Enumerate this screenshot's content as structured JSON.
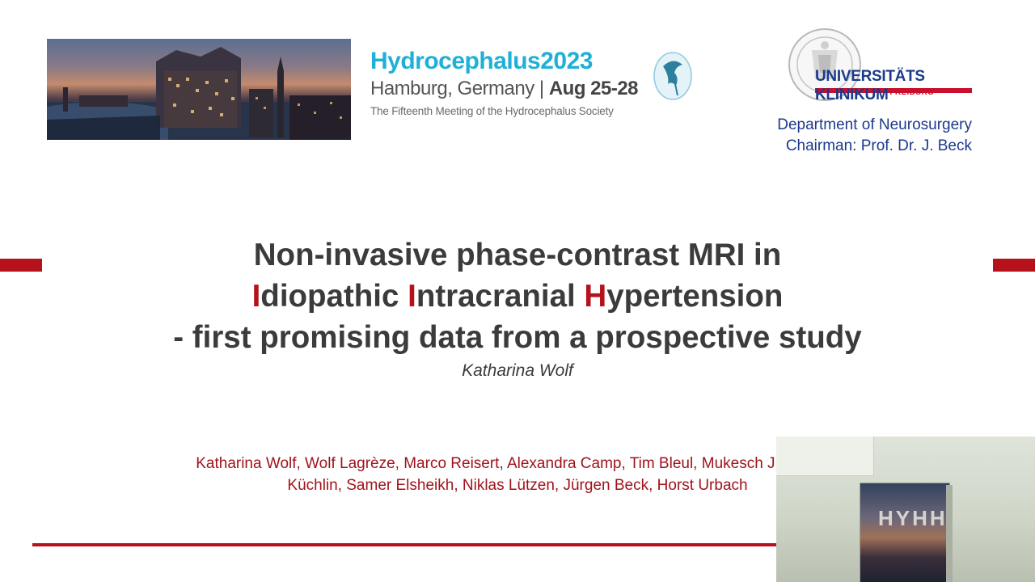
{
  "conference": {
    "name": "Hydrocephalus2023",
    "location": "Hamburg, Germany",
    "separator": "|",
    "dates": "Aug 25-28",
    "subtitle": "The Fifteenth Meeting of the Hydrocephalus Society"
  },
  "university": {
    "name_line1": "UNIVERSITÄTS",
    "name_line2": "KLINIKUM",
    "city": "FREIBURG",
    "department": "Department of Neurosurgery",
    "chairman": "Chairman: Prof. Dr. J. Beck"
  },
  "title": {
    "line1": "Non-invasive phase-contrast MRI in",
    "line2_parts": [
      "I",
      "diopathic ",
      "I",
      "ntracranial ",
      "H",
      "ypertension"
    ],
    "line3": "- first promising data from a prospective study"
  },
  "presenter": "Katharina Wolf",
  "authors": {
    "line1": "Katharina Wolf, Wolf Lagrèze, Marco Reisert, Alexandra Camp, Tim Bleul, Mukesch J. Shah, H",
    "line2": "Küchlin, Samer Elsheikh, Niklas Lützen, Jürgen Beck, Horst Urbach"
  },
  "video_overlay": {
    "poster_text": "HYHH"
  },
  "colors": {
    "accent_red": "#b5121b",
    "conference_blue": "#1fb0d8",
    "university_blue": "#1b3a8c",
    "title_gray": "#3b3b3b"
  }
}
